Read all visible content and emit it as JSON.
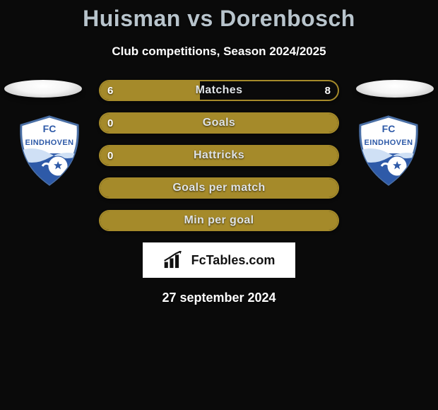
{
  "title": "Huisman vs Dorenbosch",
  "subtitle": "Club competitions, Season 2024/2025",
  "date": "27 september 2024",
  "footer_brand": "FcTables.com",
  "badge": {
    "bg": "#ffffff",
    "accent": "#2e5aa8",
    "outline": "#4a6fa5",
    "text_top": "FC",
    "text_bottom": "EINDHOVEN"
  },
  "colors": {
    "bar_border": "#a58a2a",
    "bar_fill": "#a58a2a",
    "bar_empty": "transparent"
  },
  "rows": [
    {
      "label": "Matches",
      "left_val": "6",
      "right_val": "8",
      "left_pct": 42,
      "right_pct": 58,
      "show_left_val": true,
      "show_right_val": true,
      "left_filled": true,
      "right_filled": false
    },
    {
      "label": "Goals",
      "left_val": "0",
      "right_val": "",
      "left_pct": 50,
      "right_pct": 50,
      "show_left_val": true,
      "show_right_val": false,
      "left_filled": true,
      "right_filled": true
    },
    {
      "label": "Hattricks",
      "left_val": "0",
      "right_val": "",
      "left_pct": 50,
      "right_pct": 50,
      "show_left_val": true,
      "show_right_val": false,
      "left_filled": true,
      "right_filled": true
    },
    {
      "label": "Goals per match",
      "left_val": "",
      "right_val": "",
      "left_pct": 50,
      "right_pct": 50,
      "show_left_val": false,
      "show_right_val": false,
      "left_filled": true,
      "right_filled": true
    },
    {
      "label": "Min per goal",
      "left_val": "",
      "right_val": "",
      "left_pct": 50,
      "right_pct": 50,
      "show_left_val": false,
      "show_right_val": false,
      "left_filled": true,
      "right_filled": true
    }
  ]
}
